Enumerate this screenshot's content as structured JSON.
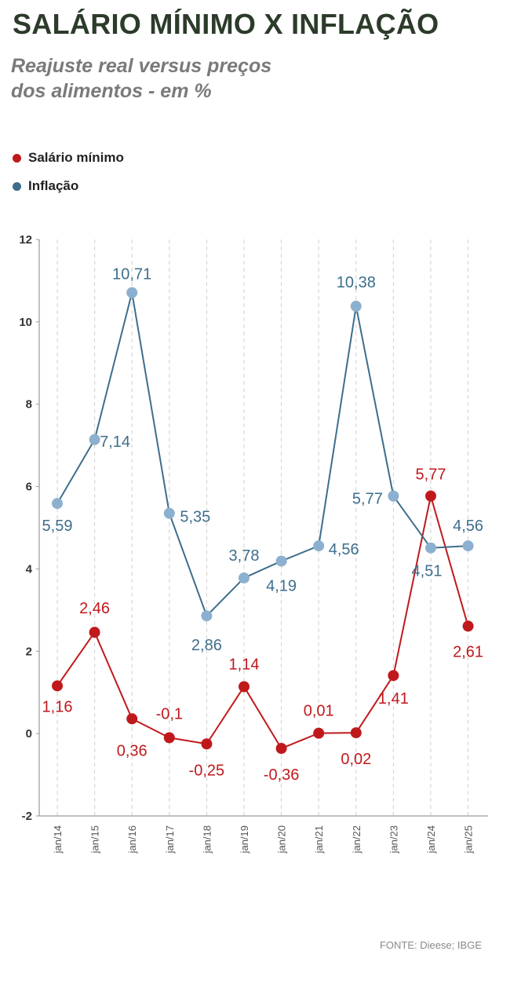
{
  "header": {
    "title": "SALÁRIO MÍNIMO X INFLAÇÃO",
    "subtitle_line1": "Reajuste real versus preços",
    "subtitle_line2": "dos alimentos - em %"
  },
  "legend": [
    {
      "label": "Salário mínimo",
      "color": "#c0191c"
    },
    {
      "label": "Inflação",
      "color": "#3e6e8c"
    }
  ],
  "source": "FONTE: Dieese; IBGE",
  "chart_data": {
    "type": "line",
    "title": "SALÁRIO MÍNIMO X INFLAÇÃO",
    "subtitle": "Reajuste real versus preços dos alimentos - em %",
    "categories": [
      "jan/14",
      "jan/15",
      "jan/16",
      "jan/17",
      "jan/18",
      "jan/19",
      "jan/20",
      "jan/21",
      "jan/22",
      "jan/23",
      "jan/24",
      "jan/25"
    ],
    "ylim": [
      -2,
      12
    ],
    "yticks": [
      -2,
      0,
      2,
      4,
      6,
      8,
      10,
      12
    ],
    "grid": "vertical-dashed",
    "legend_position": "top-left",
    "series": [
      {
        "name": "Salário mínimo",
        "color": "#c0191c",
        "values": [
          1.16,
          2.46,
          0.36,
          -0.1,
          -0.25,
          1.14,
          -0.36,
          0.01,
          0.02,
          1.41,
          5.77,
          2.61
        ],
        "labels": [
          "1,16",
          "2,46",
          "0,36",
          "-0,1",
          "-0,25",
          "1,14",
          "-0,36",
          "0,01",
          "0,02",
          "1,41",
          "5,77",
          "2,61"
        ]
      },
      {
        "name": "Inflação",
        "color": "#3e6e8c",
        "marker_color": "#8cb0cf",
        "values": [
          5.59,
          7.14,
          10.71,
          5.35,
          2.86,
          3.78,
          4.19,
          4.56,
          10.38,
          5.77,
          4.51,
          4.56
        ],
        "labels": [
          "5,59",
          "7,14",
          "10,71",
          "5,35",
          "2,86",
          "3,78",
          "4,19",
          "4,56",
          "10,38",
          "5,77",
          "4,51",
          "4,56"
        ]
      }
    ]
  }
}
